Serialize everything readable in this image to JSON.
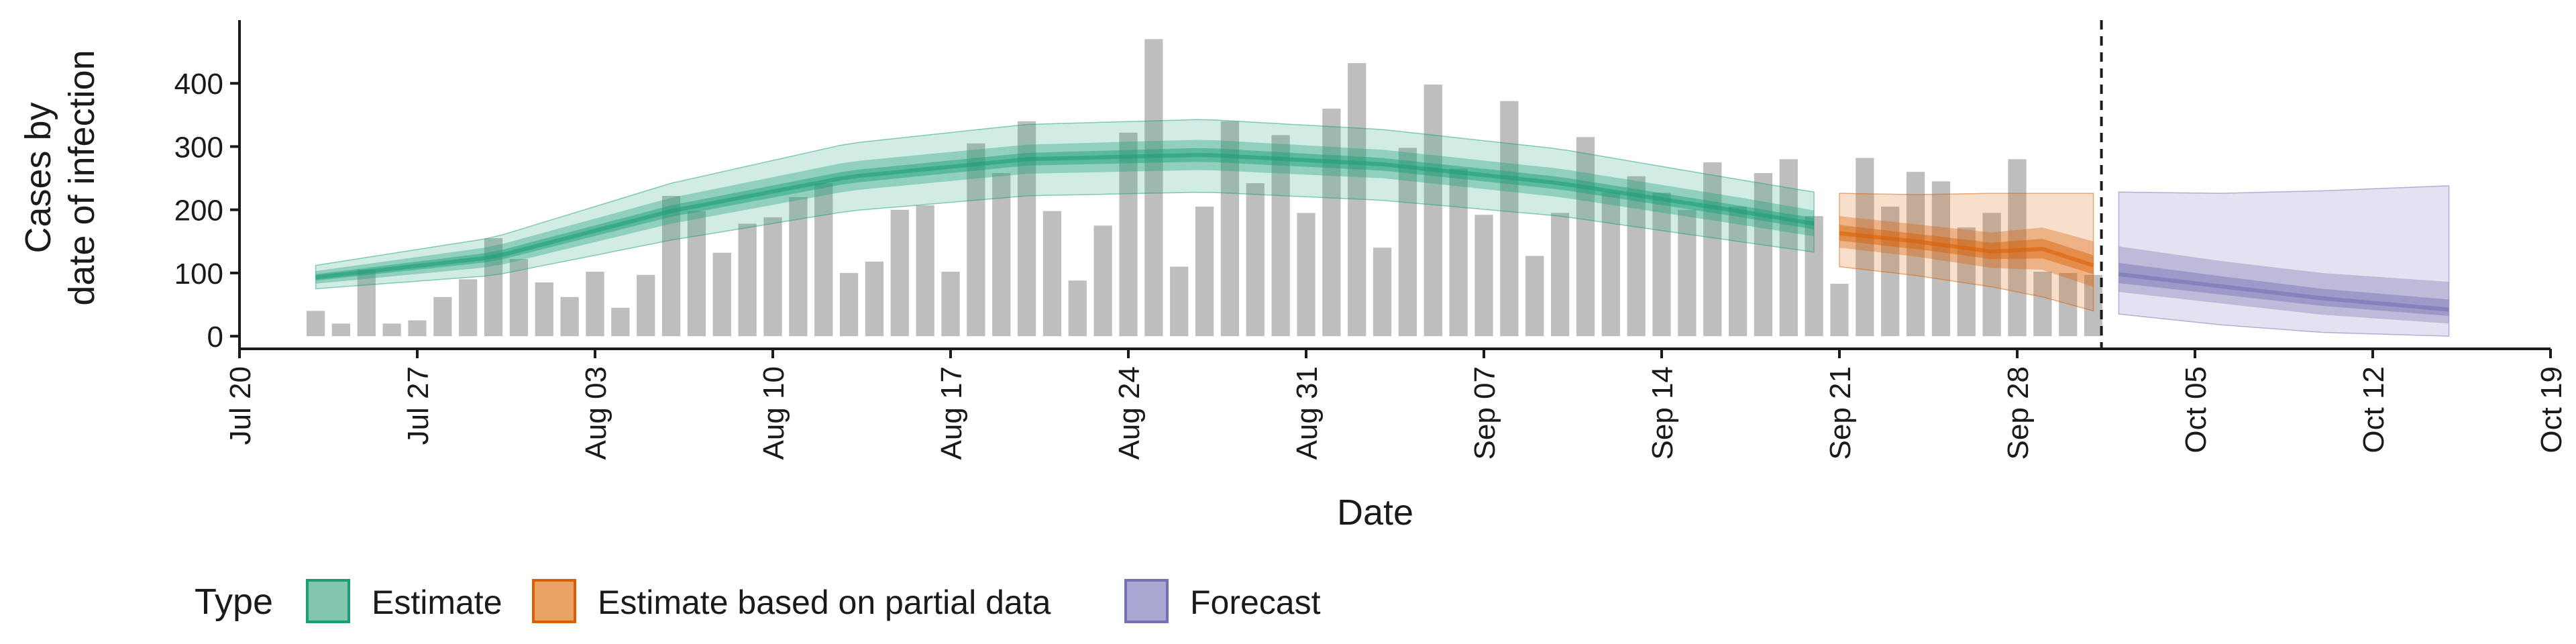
{
  "chart_data": {
    "type": "bar",
    "xlabel": "Date",
    "ylabel_lines": [
      "Cases by",
      "date of infection"
    ],
    "ylim": [
      -20,
      500
    ],
    "xlim": [
      "2020-07-20",
      "2020-10-19"
    ],
    "y_ticks": [
      0,
      100,
      200,
      300,
      400
    ],
    "x_ticks": [
      {
        "date": "2020-07-20",
        "label": "Jul 20"
      },
      {
        "date": "2020-07-27",
        "label": "Jul 27"
      },
      {
        "date": "2020-08-03",
        "label": "Aug 03"
      },
      {
        "date": "2020-08-10",
        "label": "Aug 10"
      },
      {
        "date": "2020-08-17",
        "label": "Aug 17"
      },
      {
        "date": "2020-08-24",
        "label": "Aug 24"
      },
      {
        "date": "2020-08-31",
        "label": "Aug 31"
      },
      {
        "date": "2020-09-07",
        "label": "Sep 07"
      },
      {
        "date": "2020-09-14",
        "label": "Sep 14"
      },
      {
        "date": "2020-09-21",
        "label": "Sep 21"
      },
      {
        "date": "2020-09-28",
        "label": "Sep 28"
      },
      {
        "date": "2020-10-05",
        "label": "Oct 05"
      },
      {
        "date": "2020-10-12",
        "label": "Oct 12"
      },
      {
        "date": "2020-10-19",
        "label": "Oct 19"
      }
    ],
    "grid": false,
    "legend": {
      "title": "Type",
      "placement": "bottom",
      "entries": [
        {
          "label": "Estimate",
          "fill": "#7fc6ac",
          "stroke": "#1b9e77"
        },
        {
          "label": "Estimate based on partial data",
          "fill": "#e8a263",
          "stroke": "#d95f02"
        },
        {
          "label": "Forecast",
          "fill": "#aaa7d3",
          "stroke": "#7570b3"
        }
      ]
    },
    "bars": {
      "color": "#bebebe",
      "start_date": "2020-07-23",
      "values": [
        40,
        20,
        105,
        20,
        25,
        62,
        90,
        155,
        122,
        85,
        62,
        102,
        45,
        97,
        222,
        198,
        132,
        178,
        188,
        220,
        242,
        100,
        118,
        200,
        207,
        102,
        305,
        258,
        340,
        198,
        88,
        175,
        322,
        470,
        110,
        205,
        340,
        242,
        318,
        195,
        360,
        432,
        140,
        298,
        398,
        265,
        192,
        372,
        127,
        195,
        315,
        228,
        253,
        227,
        200,
        275,
        205,
        258,
        280,
        190,
        83,
        282,
        205,
        260,
        245,
        172,
        195,
        280,
        102,
        100,
        97
      ]
    },
    "estimate": {
      "start_date": "2020-07-23",
      "end_date": "2020-09-20",
      "knots": [
        {
          "date": "2020-07-23",
          "median": 93,
          "inner": [
            88,
            98
          ],
          "mid": [
            83,
            103
          ],
          "outer": [
            75,
            112
          ]
        },
        {
          "date": "2020-07-30",
          "median": 125,
          "inner": [
            118,
            133
          ],
          "mid": [
            110,
            142
          ],
          "outer": [
            96,
            156
          ]
        },
        {
          "date": "2020-08-06",
          "median": 198,
          "inner": [
            189,
            207
          ],
          "mid": [
            178,
            219
          ],
          "outer": [
            152,
            242
          ]
        },
        {
          "date": "2020-08-13",
          "median": 252,
          "inner": [
            242,
            262
          ],
          "mid": [
            230,
            276
          ],
          "outer": [
            198,
            305
          ]
        },
        {
          "date": "2020-08-20",
          "median": 280,
          "inner": [
            270,
            290
          ],
          "mid": [
            257,
            303
          ],
          "outer": [
            222,
            335
          ]
        },
        {
          "date": "2020-08-27",
          "median": 287,
          "inner": [
            276,
            298
          ],
          "mid": [
            263,
            311
          ],
          "outer": [
            228,
            343
          ]
        },
        {
          "date": "2020-09-03",
          "median": 272,
          "inner": [
            262,
            282
          ],
          "mid": [
            250,
            295
          ],
          "outer": [
            215,
            327
          ]
        },
        {
          "date": "2020-09-10",
          "median": 242,
          "inner": [
            232,
            252
          ],
          "mid": [
            220,
            265
          ],
          "outer": [
            190,
            296
          ]
        },
        {
          "date": "2020-09-17",
          "median": 198,
          "inner": [
            189,
            207
          ],
          "mid": [
            177,
            220
          ],
          "outer": [
            150,
            248
          ]
        },
        {
          "date": "2020-09-20",
          "median": 178,
          "inner": [
            169,
            187
          ],
          "mid": [
            158,
            199
          ],
          "outer": [
            133,
            228
          ]
        }
      ]
    },
    "partial": {
      "start_date": "2020-09-21",
      "end_date": "2020-10-01",
      "knots": [
        {
          "date": "2020-09-21",
          "median": 163,
          "inner": [
            151,
            176
          ],
          "mid": [
            140,
            190
          ],
          "outer": [
            110,
            226
          ]
        },
        {
          "date": "2020-09-24",
          "median": 150,
          "inner": [
            138,
            162
          ],
          "mid": [
            126,
            177
          ],
          "outer": [
            96,
            224
          ]
        },
        {
          "date": "2020-09-27",
          "median": 134,
          "inner": [
            122,
            148
          ],
          "mid": [
            108,
            164
          ],
          "outer": [
            78,
            226
          ]
        },
        {
          "date": "2020-09-29",
          "median": 138,
          "inner": [
            123,
            154
          ],
          "mid": [
            105,
            172
          ],
          "outer": [
            62,
            226
          ]
        },
        {
          "date": "2020-10-01",
          "median": 112,
          "inner": [
            98,
            128
          ],
          "mid": [
            78,
            150
          ],
          "outer": [
            40,
            226
          ]
        }
      ]
    },
    "forecast": {
      "start_date": "2020-10-02",
      "end_date": "2020-10-15",
      "knots": [
        {
          "date": "2020-10-02",
          "median": 98,
          "inner": [
            84,
            116
          ],
          "mid": [
            70,
            142
          ],
          "outer": [
            35,
            228
          ]
        },
        {
          "date": "2020-10-06",
          "median": 79,
          "inner": [
            66,
            95
          ],
          "mid": [
            52,
            119
          ],
          "outer": [
            18,
            226
          ]
        },
        {
          "date": "2020-10-10",
          "median": 60,
          "inner": [
            48,
            75
          ],
          "mid": [
            34,
            100
          ],
          "outer": [
            6,
            230
          ]
        },
        {
          "date": "2020-10-15",
          "median": 42,
          "inner": [
            32,
            58
          ],
          "mid": [
            20,
            86
          ],
          "outer": [
            0,
            238
          ]
        }
      ]
    },
    "series_colors": {
      "estimate": "#1b9e77",
      "partial": "#d95f02",
      "forecast": "#7570b3"
    },
    "vline_date": "2020-10-01"
  }
}
